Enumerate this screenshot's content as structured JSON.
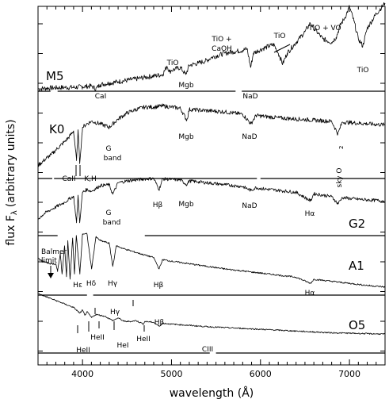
{
  "chart_data": {
    "type": "line",
    "xlabel": "wavelength (Å)",
    "ylabel": "flux F",
    "ylabel_sub": "λ",
    "ylabel_tail": "(arbitrary units)",
    "xlim": [
      3500,
      7400
    ],
    "xticks": [
      4000,
      5000,
      6000,
      7000
    ],
    "xtick_labels": [
      "4000",
      "5000",
      "6000",
      "7000"
    ],
    "series": [
      {
        "name": "M5",
        "zero_gaps": [
          [
            3640,
            3720
          ],
          [
            5720,
            5790
          ]
        ],
        "x": [
          3500,
          3600,
          3700,
          3800,
          3900,
          4000,
          4100,
          4150,
          4200,
          4300,
          4400,
          4500,
          4600,
          4700,
          4800,
          4900,
          4950,
          4980,
          5000,
          5100,
          5160,
          5200,
          5300,
          5400,
          5450,
          5500,
          5600,
          5700,
          5800,
          5850,
          5890,
          5920,
          6000,
          6100,
          6150,
          6200,
          6250,
          6300,
          6400,
          6500,
          6560,
          6600,
          6700,
          6800,
          6850,
          6900,
          6950,
          7000,
          7050,
          7100,
          7150,
          7200,
          7300,
          7400
        ],
        "y": [
          0.0,
          0.01,
          0.015,
          0.02,
          0.02,
          0.03,
          0.04,
          0.0,
          0.06,
          0.08,
          0.1,
          0.12,
          0.14,
          0.16,
          0.18,
          0.2,
          0.32,
          0.24,
          0.26,
          0.3,
          0.2,
          0.33,
          0.36,
          0.4,
          0.44,
          0.46,
          0.5,
          0.52,
          0.54,
          0.56,
          0.3,
          0.5,
          0.55,
          0.6,
          0.62,
          0.5,
          0.35,
          0.5,
          0.65,
          0.8,
          0.92,
          0.85,
          0.7,
          0.65,
          0.72,
          0.9,
          1.0,
          1.15,
          0.95,
          0.7,
          0.6,
          0.85,
          1.05,
          1.2
        ]
      },
      {
        "name": "K0",
        "zero_gaps": [
          [
            3660,
            3680
          ],
          [
            5960,
            6000
          ]
        ],
        "x": [
          3500,
          3550,
          3600,
          3650,
          3700,
          3750,
          3800,
          3850,
          3900,
          3933,
          3950,
          3968,
          4000,
          4050,
          4100,
          4200,
          4300,
          4400,
          4500,
          4600,
          4700,
          4800,
          4900,
          5000,
          5100,
          5172,
          5200,
          5300,
          5400,
          5500,
          5600,
          5700,
          5800,
          5893,
          5950,
          6000,
          6200,
          6400,
          6600,
          6800,
          6870,
          6920,
          7000,
          7200,
          7400
        ],
        "y": [
          0.02,
          0.08,
          0.15,
          0.2,
          0.28,
          0.35,
          0.42,
          0.5,
          0.6,
          0.1,
          0.62,
          0.05,
          0.66,
          0.72,
          0.76,
          0.72,
          0.66,
          0.8,
          0.9,
          0.96,
          1.0,
          1.0,
          1.02,
          1.0,
          0.98,
          0.78,
          0.96,
          0.95,
          0.94,
          0.93,
          0.92,
          0.9,
          0.88,
          0.72,
          0.86,
          0.85,
          0.82,
          0.8,
          0.78,
          0.76,
          0.55,
          0.75,
          0.74,
          0.72,
          0.7
        ]
      },
      {
        "name": "G2",
        "zero_gaps": [
          [
            3720,
            4700
          ]
        ],
        "x": [
          3500,
          3550,
          3600,
          3650,
          3700,
          3750,
          3800,
          3850,
          3900,
          3933,
          3950,
          3968,
          4000,
          4050,
          4100,
          4200,
          4300,
          4340,
          4400,
          4500,
          4600,
          4700,
          4800,
          4861,
          4900,
          5000,
          5100,
          5172,
          5200,
          5300,
          5400,
          5500,
          5600,
          5700,
          5800,
          5893,
          5950,
          6000,
          6200,
          6400,
          6563,
          6600,
          6700,
          6800,
          6870,
          6920,
          7000,
          7200,
          7400
        ],
        "y": [
          0.1,
          0.18,
          0.25,
          0.3,
          0.35,
          0.4,
          0.45,
          0.52,
          0.58,
          0.02,
          0.6,
          0.02,
          0.66,
          0.72,
          0.68,
          0.8,
          0.82,
          0.62,
          0.86,
          0.9,
          0.92,
          0.94,
          0.95,
          0.72,
          0.94,
          0.93,
          0.92,
          0.82,
          0.9,
          0.88,
          0.86,
          0.84,
          0.82,
          0.8,
          0.78,
          0.7,
          0.76,
          0.74,
          0.7,
          0.66,
          0.48,
          0.63,
          0.6,
          0.57,
          0.42,
          0.55,
          0.53,
          0.5,
          0.48
        ]
      },
      {
        "name": "A1",
        "zero_gaps": [
          [
            4050,
            4120
          ]
        ],
        "x": [
          3500,
          3550,
          3600,
          3650,
          3700,
          3720,
          3750,
          3770,
          3798,
          3820,
          3835,
          3860,
          3889,
          3910,
          3930,
          3970,
          4000,
          4050,
          4102,
          4150,
          4200,
          4300,
          4340,
          4380,
          4450,
          4600,
          4800,
          4861,
          4900,
          5000,
          5200,
          5400,
          5600,
          5800,
          6000,
          6200,
          6400,
          6563,
          6600,
          6800,
          7000,
          7200,
          7400
        ],
        "y": [
          0.6,
          0.55,
          0.52,
          0.5,
          0.5,
          0.35,
          0.7,
          0.3,
          0.85,
          0.25,
          0.95,
          0.2,
          1.0,
          0.3,
          1.05,
          0.3,
          1.08,
          1.08,
          0.4,
          1.02,
          0.95,
          0.9,
          0.45,
          0.85,
          0.8,
          0.72,
          0.62,
          0.4,
          0.58,
          0.55,
          0.5,
          0.45,
          0.4,
          0.36,
          0.32,
          0.28,
          0.24,
          0.12,
          0.2,
          0.16,
          0.12,
          0.08,
          0.05
        ]
      },
      {
        "name": "O5",
        "zero_gaps": [
          [
            5430,
            5500
          ]
        ],
        "x": [
          3500,
          3550,
          3600,
          3650,
          3700,
          3750,
          3800,
          3850,
          3900,
          3970,
          4000,
          4026,
          4050,
          4102,
          4150,
          4200,
          4250,
          4340,
          4400,
          4471,
          4542,
          4600,
          4686,
          4700,
          4800,
          4861,
          4900,
          5000,
          5200,
          5400,
          5600,
          5800,
          6000,
          6200,
          6400,
          6600,
          6800,
          7000,
          7200,
          7400
        ],
        "y": [
          1.0,
          0.96,
          0.92,
          0.88,
          0.84,
          0.8,
          0.76,
          0.72,
          0.68,
          0.55,
          0.62,
          0.5,
          0.58,
          0.45,
          0.52,
          0.5,
          0.48,
          0.38,
          0.44,
          0.36,
          0.36,
          0.38,
          0.3,
          0.36,
          0.34,
          0.25,
          0.32,
          0.3,
          0.27,
          0.24,
          0.22,
          0.2,
          0.18,
          0.16,
          0.14,
          0.12,
          0.1,
          0.09,
          0.08,
          0.07
        ]
      }
    ],
    "annotations": [
      {
        "text": "TiO",
        "x": 4954,
        "series": "M5"
      },
      {
        "text": "TiO +",
        "x": 5448,
        "series": "M5"
      },
      {
        "text": "CaOH",
        "x": 5448,
        "series": "M5"
      },
      {
        "text": "TiO",
        "x": 6150,
        "series": "M5"
      },
      {
        "text": "TiO + VO",
        "x": 6560,
        "series": "M5"
      },
      {
        "text": "TiO",
        "x": 7100,
        "series": "M5"
      },
      {
        "text": "CaI",
        "x": 4226,
        "series": "M5"
      },
      {
        "text": "Mgb",
        "x": 5172,
        "series": "M5"
      },
      {
        "text": "NaD",
        "x": 5893,
        "series": "M5"
      },
      {
        "text": "G",
        "x": 4300,
        "series": "K0"
      },
      {
        "text": "band",
        "x": 4300,
        "series": "K0"
      },
      {
        "text": "Mgb",
        "x": 5172,
        "series": "K0"
      },
      {
        "text": "NaD",
        "x": 5893,
        "series": "K0"
      },
      {
        "text": "sky O",
        "x": 6870,
        "series": "K0"
      },
      {
        "text": "2",
        "x": 6870,
        "series": "K0"
      },
      {
        "text": "CaII",
        "x": 3900,
        "series": "K0"
      },
      {
        "text": "K,H",
        "x": 4000,
        "series": "K0"
      },
      {
        "text": "G",
        "x": 4300,
        "series": "G2"
      },
      {
        "text": "band",
        "x": 4300,
        "series": "G2"
      },
      {
        "text": "Hβ",
        "x": 4861,
        "series": "G2"
      },
      {
        "text": "Mgb",
        "x": 5172,
        "series": "G2"
      },
      {
        "text": "NaD",
        "x": 5893,
        "series": "G2"
      },
      {
        "text": "Hα",
        "x": 6563,
        "series": "G2"
      },
      {
        "text": "Balmer",
        "x": 3640,
        "series": "A1"
      },
      {
        "text": "limit",
        "x": 3640,
        "series": "A1"
      },
      {
        "text": "Hε",
        "x": 3970,
        "series": "A1"
      },
      {
        "text": "Hδ",
        "x": 4102,
        "series": "A1"
      },
      {
        "text": "Hγ",
        "x": 4340,
        "series": "A1"
      },
      {
        "text": "Hβ",
        "x": 4861,
        "series": "A1"
      },
      {
        "text": "Hα",
        "x": 6563,
        "series": "A1"
      },
      {
        "text": "Hγ",
        "x": 4340,
        "series": "O5"
      },
      {
        "text": "Hβ",
        "x": 4861,
        "series": "O5"
      },
      {
        "text": "HeII",
        "x": 4026,
        "series": "O5"
      },
      {
        "text": "HeII",
        "x": 4200,
        "series": "O5"
      },
      {
        "text": "HeI",
        "x": 4471,
        "series": "O5"
      },
      {
        "text": "HeII",
        "x": 4686,
        "series": "O5"
      },
      {
        "text": "CIII",
        "x": 5696,
        "series": "O5"
      }
    ],
    "grid": false
  }
}
